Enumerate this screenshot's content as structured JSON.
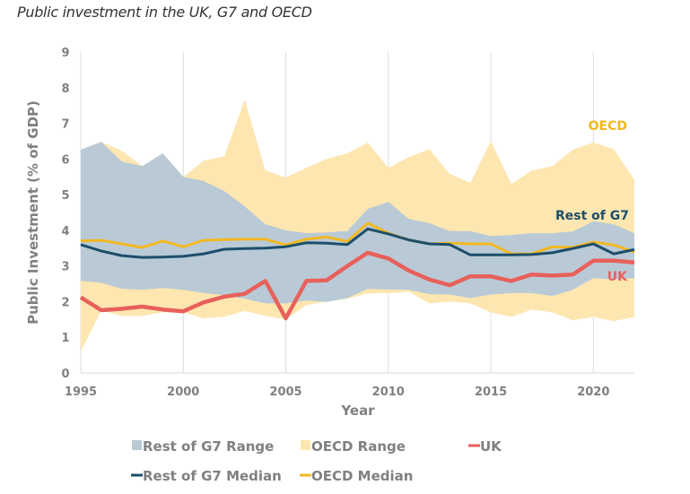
{
  "title": "Public investment in the UK, G7 and OECD",
  "colors": {
    "g7_range": "#b9cad6",
    "oecd_range": "#fde6b0",
    "uk": "#e8605a",
    "g7_median": "#1d4e6b",
    "oecd_median": "#f2b822",
    "grid": "#dddddd",
    "text": "#808080"
  },
  "chart_data": {
    "type": "area",
    "title": "Public investment in the UK, G7 and OECD",
    "xlabel": "Year",
    "ylabel": "Public Investment (% of GDP)",
    "xlim": [
      1995,
      2022
    ],
    "ylim": [
      0,
      9
    ],
    "x_ticks": [
      "1995",
      "2000",
      "2005",
      "2010",
      "2015",
      "2020"
    ],
    "y_ticks": [
      "0",
      "1",
      "2",
      "3",
      "4",
      "5",
      "6",
      "7",
      "8",
      "9"
    ],
    "grid": "vertical",
    "legend_position": "bottom",
    "x": [
      1995,
      1996,
      1997,
      1998,
      1999,
      2000,
      2001,
      2002,
      2003,
      2004,
      2005,
      2006,
      2007,
      2008,
      2009,
      2010,
      2011,
      2012,
      2013,
      2014,
      2015,
      2016,
      2017,
      2018,
      2019,
      2020,
      2021,
      2022
    ],
    "series": [
      {
        "name": "OECD Range",
        "kind": "range",
        "upper": [
          6.26,
          6.48,
          6.23,
          5.8,
          6.16,
          5.5,
          5.95,
          6.08,
          7.66,
          5.68,
          5.48,
          5.75,
          6.0,
          6.16,
          6.46,
          5.75,
          6.05,
          6.28,
          5.58,
          5.33,
          6.5,
          5.3,
          5.68,
          5.8,
          6.26,
          6.46,
          6.28,
          5.42
        ],
        "lower": [
          0.6,
          1.76,
          1.6,
          1.6,
          1.7,
          1.7,
          1.53,
          1.58,
          1.74,
          1.6,
          1.5,
          1.9,
          2.0,
          2.08,
          2.23,
          2.23,
          2.28,
          1.95,
          2.0,
          1.95,
          1.7,
          1.57,
          1.78,
          1.7,
          1.48,
          1.57,
          1.45,
          1.57
        ]
      },
      {
        "name": "Rest of G7 Range",
        "kind": "range",
        "upper": [
          6.26,
          6.48,
          5.93,
          5.8,
          6.16,
          5.5,
          5.38,
          5.1,
          4.67,
          4.17,
          4.0,
          3.92,
          3.94,
          3.98,
          4.6,
          4.8,
          4.32,
          4.2,
          3.98,
          3.98,
          3.84,
          3.87,
          3.92,
          3.92,
          3.97,
          4.25,
          4.17,
          3.92
        ],
        "lower": [
          2.58,
          2.53,
          2.36,
          2.33,
          2.38,
          2.33,
          2.24,
          2.18,
          2.08,
          1.95,
          1.95,
          2.03,
          1.99,
          2.1,
          2.36,
          2.34,
          2.33,
          2.21,
          2.2,
          2.1,
          2.2,
          2.24,
          2.24,
          2.16,
          2.33,
          2.66,
          2.62,
          2.66
        ]
      },
      {
        "name": "UK",
        "kind": "line",
        "values": [
          2.12,
          1.76,
          1.8,
          1.86,
          1.78,
          1.73,
          1.98,
          2.14,
          2.22,
          2.58,
          1.53,
          2.58,
          2.6,
          3.0,
          3.37,
          3.21,
          2.87,
          2.62,
          2.46,
          2.71,
          2.71,
          2.58,
          2.76,
          2.73,
          2.76,
          3.15,
          3.15,
          3.1
        ]
      },
      {
        "name": "Rest of G7 Median",
        "kind": "line",
        "values": [
          3.6,
          3.42,
          3.29,
          3.24,
          3.25,
          3.27,
          3.34,
          3.47,
          3.49,
          3.5,
          3.54,
          3.65,
          3.64,
          3.6,
          4.04,
          3.9,
          3.73,
          3.62,
          3.6,
          3.31,
          3.31,
          3.31,
          3.32,
          3.37,
          3.49,
          3.62,
          3.34,
          3.46
        ]
      },
      {
        "name": "OECD Median",
        "kind": "line",
        "values": [
          3.7,
          3.72,
          3.62,
          3.52,
          3.7,
          3.54,
          3.72,
          3.74,
          3.75,
          3.75,
          3.59,
          3.75,
          3.81,
          3.69,
          4.2,
          3.92,
          3.73,
          3.62,
          3.64,
          3.62,
          3.62,
          3.34,
          3.34,
          3.54,
          3.52,
          3.67,
          3.59,
          3.39
        ]
      }
    ],
    "annotations": [
      {
        "text": "OECD",
        "series": "OECD Range"
      },
      {
        "text": "Rest of G7",
        "series": "Rest of G7 Range"
      },
      {
        "text": "UK",
        "series": "UK"
      }
    ],
    "legend": [
      {
        "label": "Rest of G7 Range",
        "symbol": "square",
        "series": "g7_range"
      },
      {
        "label": "OECD Range",
        "symbol": "square",
        "series": "oecd_range"
      },
      {
        "label": "UK",
        "symbol": "line",
        "series": "uk"
      },
      {
        "label": "Rest of G7 Median",
        "symbol": "line",
        "series": "g7_median"
      },
      {
        "label": "OECD Median",
        "symbol": "line",
        "series": "oecd_median"
      }
    ]
  }
}
